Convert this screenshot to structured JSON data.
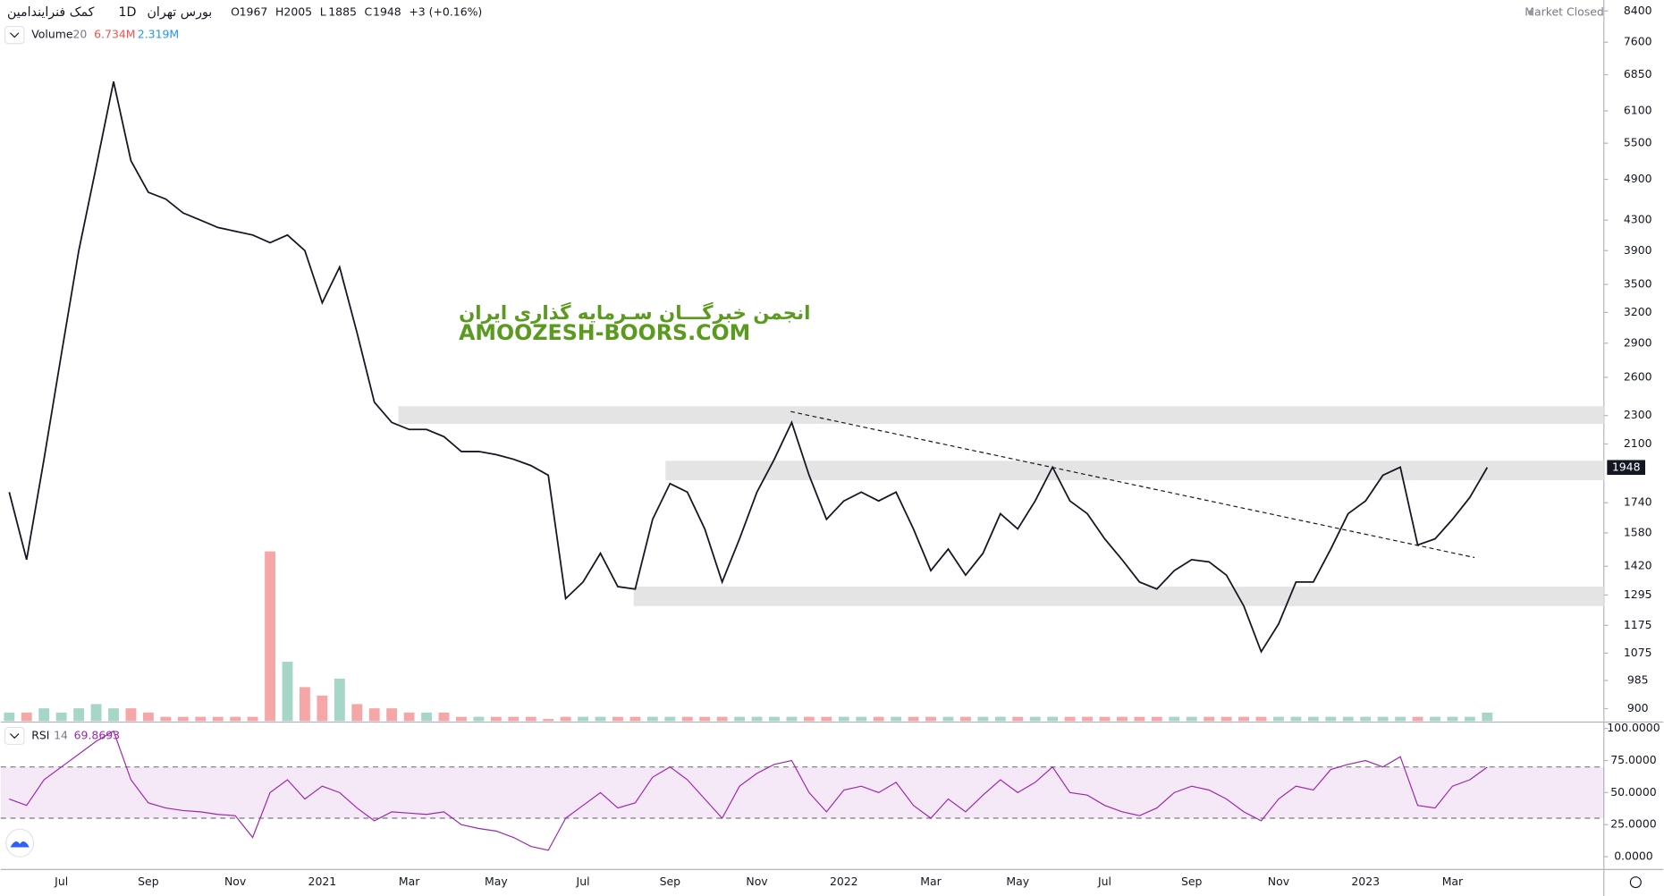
{
  "header": {
    "symbol": "کمک فنرایندامین",
    "interval": "1D",
    "exchange": "بورس تهران",
    "ohlc": [
      {
        "label": "O",
        "value": 1967
      },
      {
        "label": "H",
        "value": 2005
      },
      {
        "label": "L",
        "value": 1885
      },
      {
        "label": "C",
        "value": 1948
      }
    ],
    "change_label": "+3 (+0.16%)",
    "status": "Market Closed"
  },
  "watermark": {
    "line1": "انجمن خبرگـــان سـرمایه گذاری ایران",
    "line2": "AMOOZESH-BOORS.COM"
  },
  "chart_data": {
    "type": "line",
    "color": "#131722",
    "log_scale": true,
    "categories": [
      null,
      null,
      null,
      "Jul",
      null,
      null,
      null,
      null,
      "Sep",
      null,
      null,
      null,
      null,
      "Nov",
      null,
      null,
      null,
      null,
      "2021",
      null,
      null,
      null,
      null,
      "Mar",
      null,
      null,
      null,
      null,
      "May",
      null,
      null,
      null,
      null,
      "Jul",
      null,
      null,
      null,
      null,
      "Sep",
      null,
      null,
      null,
      null,
      "Nov",
      null,
      null,
      null,
      null,
      "2022",
      null,
      null,
      null,
      null,
      "Mar",
      null,
      null,
      null,
      null,
      "May",
      null,
      null,
      null,
      null,
      "Jul",
      null,
      null,
      null,
      null,
      "Sep",
      null,
      null,
      null,
      null,
      "Nov",
      null,
      null,
      null,
      null,
      "2023",
      null,
      null,
      null,
      null,
      "Mar",
      null,
      null
    ],
    "values": [
      1800,
      1450,
      2000,
      2800,
      3900,
      5100,
      6700,
      5200,
      4700,
      4600,
      4400,
      4300,
      4200,
      4150,
      4100,
      4000,
      4100,
      3900,
      3300,
      3700,
      3000,
      2400,
      2250,
      2200,
      2200,
      2150,
      2050,
      2050,
      2030,
      2000,
      1960,
      1900,
      1280,
      1350,
      1480,
      1330,
      1320,
      1650,
      1850,
      1800,
      1600,
      1350,
      1550,
      1800,
      2000,
      2250,
      1900,
      1650,
      1750,
      1800,
      1750,
      1800,
      1600,
      1400,
      1500,
      1380,
      1480,
      1680,
      1600,
      1750,
      1950,
      1750,
      1680,
      1550,
      1450,
      1350,
      1320,
      1400,
      1450,
      1440,
      1380,
      1250,
      1080,
      1180,
      1350,
      1350,
      1500,
      1680,
      1750,
      1900,
      1950,
      1520,
      1550,
      1650,
      1770,
      1948
    ],
    "ylim": [
      865,
      8700
    ],
    "yticks": [
      8400,
      7600,
      6850,
      6100,
      5500,
      4900,
      4300,
      3900,
      3500,
      3200,
      2900,
      2600,
      2300,
      2100,
      1740,
      1580,
      1420,
      1295,
      1175,
      1075,
      985,
      900
    ],
    "last_price": 1948,
    "zones": [
      [
        2240,
        2370
      ],
      [
        1870,
        1990
      ],
      [
        1250,
        1330
      ]
    ],
    "trendline": [
      2330,
      1460
    ],
    "volume": {
      "name": "Volume",
      "length": "20",
      "value_label": "6.734M",
      "ma_label": "2.319M",
      "up_color": "#a5d6c8",
      "down_color": "#f5a7a7",
      "values": [
        2,
        2,
        3,
        2,
        3,
        4,
        3,
        3,
        2,
        1,
        1,
        1,
        1,
        1,
        1,
        40,
        14,
        8,
        6,
        10,
        4,
        3,
        3,
        2,
        2,
        2,
        1,
        1,
        1,
        1,
        1,
        0.5,
        1,
        1,
        1,
        1,
        1,
        1,
        1,
        1,
        1,
        1,
        1,
        1,
        1,
        1,
        1,
        1,
        1,
        1,
        1,
        1,
        1,
        1,
        1,
        1,
        1,
        1,
        1,
        1,
        1,
        1,
        1,
        1,
        1,
        1,
        1,
        1,
        1,
        1,
        1,
        1,
        1,
        1,
        1,
        1,
        1,
        1,
        1,
        1,
        1,
        1,
        1,
        1,
        1,
        2
      ]
    },
    "rsi": {
      "name": "RSI",
      "length": "14",
      "color": "#9c27b0",
      "band": [
        30,
        70
      ],
      "values": [
        45,
        40,
        60,
        70,
        80,
        90,
        98,
        60,
        42,
        38,
        36,
        35,
        33,
        32,
        15,
        50,
        60,
        45,
        55,
        50,
        38,
        28,
        35,
        34,
        33,
        35,
        25,
        22,
        20,
        15,
        8,
        5,
        30,
        40,
        50,
        38,
        42,
        62,
        70,
        60,
        45,
        30,
        55,
        65,
        72,
        75,
        50,
        35,
        52,
        55,
        50,
        58,
        40,
        30,
        45,
        35,
        48,
        60,
        50,
        58,
        70,
        50,
        48,
        40,
        35,
        32,
        38,
        50,
        55,
        52,
        45,
        35,
        28,
        45,
        55,
        52,
        68,
        72,
        75,
        70,
        78,
        40,
        38,
        55,
        60,
        69.8693
      ],
      "ylim": [
        -10,
        105
      ],
      "yticks": [
        {
          "value": 100,
          "label": "100.0000"
        },
        {
          "value": 75,
          "label": "75.0000"
        },
        {
          "value": 50,
          "label": "50.0000"
        },
        {
          "value": 25,
          "label": "25.0000"
        },
        {
          "value": 0,
          "label": "0.0000"
        }
      ]
    }
  }
}
